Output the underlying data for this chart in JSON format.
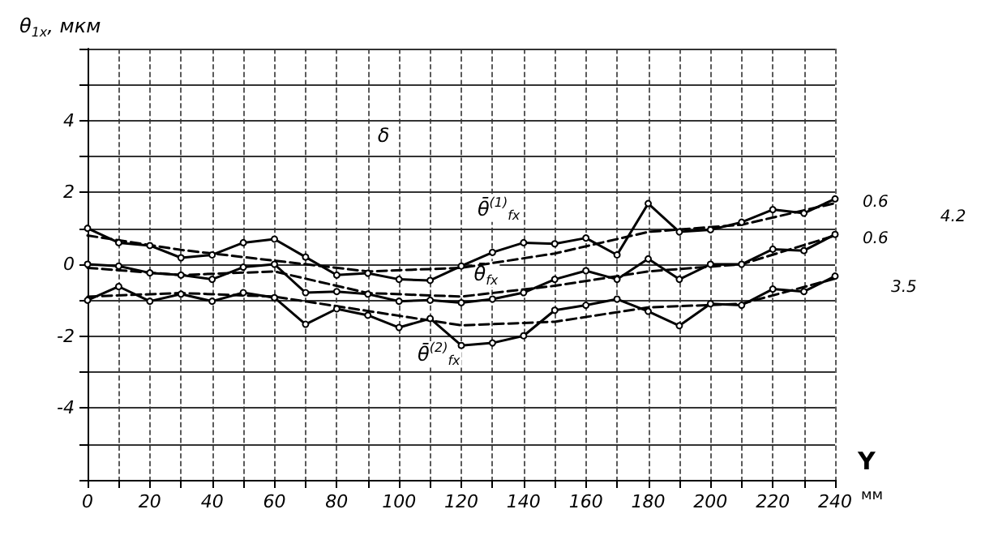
{
  "chart_data": {
    "type": "line",
    "ylabel": "θ$_{1x}$, мкм",
    "xlabel": "Y",
    "x": [
      0,
      10,
      20,
      30,
      40,
      50,
      60,
      70,
      80,
      90,
      100,
      110,
      120,
      130,
      140,
      150,
      160,
      170,
      180,
      190,
      200,
      210,
      220,
      230,
      240
    ],
    "series": [
      {
        "color": "#000000",
        "line_style": "solid",
        "marker": "circle",
        "values": [
          1.0,
          0.6,
          0.52,
          0.18,
          0.26,
          0.6,
          0.7,
          0.2,
          -0.3,
          -0.25,
          -0.42,
          -0.45,
          -0.05,
          0.33,
          0.6,
          0.57,
          0.73,
          0.26,
          1.69,
          0.9,
          0.96,
          1.17,
          1.52,
          1.42,
          1.82
        ]
      },
      {
        "color": "#000000",
        "line_style": "solid",
        "marker": "circle",
        "values": [
          0.0,
          -0.05,
          -0.24,
          -0.3,
          -0.42,
          -0.08,
          0.0,
          -0.79,
          -0.76,
          -0.83,
          -1.03,
          -1.0,
          -1.07,
          -0.97,
          -0.79,
          -0.42,
          -0.18,
          -0.42,
          0.15,
          -0.42,
          0.0,
          0.0,
          0.42,
          0.38,
          0.83
        ]
      },
      {
        "color": "#000000",
        "line_style": "solid",
        "marker": "circle",
        "values": [
          -1.0,
          -0.62,
          -1.03,
          -0.83,
          -1.03,
          -0.79,
          -0.93,
          -1.67,
          -1.24,
          -1.42,
          -1.76,
          -1.51,
          -2.26,
          -2.19,
          -1.99,
          -1.28,
          -1.14,
          -0.97,
          -1.31,
          -1.71,
          -1.1,
          -1.14,
          -0.69,
          -0.76,
          -0.33
        ]
      },
      {
        "color": "#000000",
        "line_style": "dashed",
        "marker": "none",
        "x": [
          0,
          30,
          60,
          90,
          120,
          150,
          180,
          210,
          240
        ],
        "values": [
          0.8,
          0.4,
          0.1,
          -0.2,
          -0.1,
          0.3,
          0.9,
          1.1,
          1.7
        ]
      },
      {
        "color": "#000000",
        "line_style": "dashed",
        "marker": "none",
        "x": [
          0,
          30,
          60,
          90,
          120,
          150,
          180,
          210,
          240
        ],
        "values": [
          -0.1,
          -0.3,
          -0.2,
          -0.8,
          -0.9,
          -0.6,
          -0.2,
          0.0,
          0.8
        ]
      },
      {
        "color": "#000000",
        "line_style": "dashed",
        "marker": "none",
        "x": [
          0,
          30,
          60,
          90,
          120,
          150,
          180,
          210,
          240
        ],
        "values": [
          -0.9,
          -0.8,
          -0.9,
          -1.3,
          -1.7,
          -1.6,
          -1.2,
          -1.1,
          -0.4
        ]
      }
    ],
    "xlim": [
      0,
      240
    ],
    "xticks": [
      0,
      {
        "value": 10,
        "label": null
      },
      20,
      {
        "value": 30,
        "label": null
      },
      40,
      {
        "value": 50,
        "label": null
      },
      60,
      {
        "value": 70,
        "label": null
      },
      80,
      {
        "value": 90,
        "label": null
      },
      100,
      {
        "value": 110,
        "label": null
      },
      120,
      {
        "value": 130,
        "label": null
      },
      140,
      {
        "value": 150,
        "label": null
      },
      160,
      {
        "value": 170,
        "label": null
      },
      180,
      {
        "value": 190,
        "label": null
      },
      200,
      {
        "value": 210,
        "label": null
      },
      220,
      {
        "value": 230,
        "label": null
      },
      240
    ],
    "ylim": [
      -6,
      6
    ],
    "yticks": [
      {
        "value": -6,
        "label": null
      },
      {
        "value": -5,
        "label": null
      },
      -4,
      {
        "value": -3,
        "label": null
      },
      -2,
      {
        "value": -1,
        "label": null
      },
      0,
      {
        "value": 1,
        "label": null
      },
      2,
      {
        "value": 3,
        "label": null
      },
      4,
      {
        "value": 5,
        "label": null
      },
      {
        "value": 6,
        "label": null
      }
    ],
    "grid": true,
    "annotations": [
      "θ̄$^{(1)}$$_{fx}$",
      "θ̄$_{fx}$",
      "θ̄$^{(2)}$$_{fx}$",
      "δ",
      "0.6",
      "0.6",
      "3.5",
      "4.2",
      "мм"
    ]
  }
}
